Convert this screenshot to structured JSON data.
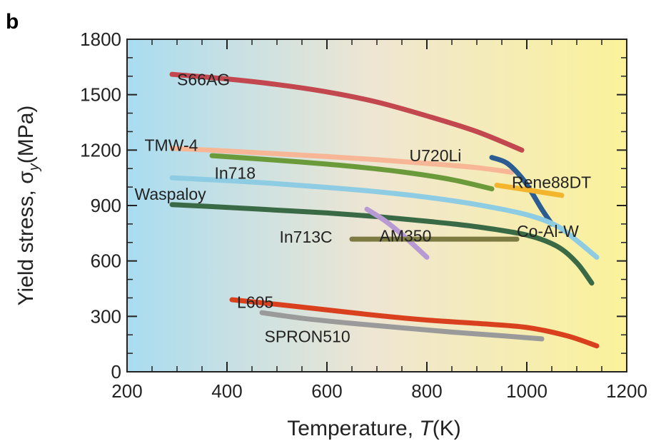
{
  "chart_data": {
    "type": "line",
    "panel_label": "b",
    "xlabel_prefix": "Temperature, ",
    "xlabel_var": "T",
    "xlabel_unit": "(K)",
    "ylabel_prefix": "Yield stress, ",
    "ylabel_sym": "σ",
    "ylabel_sub": "y",
    "ylabel_unit": "(MPa)",
    "xlim": [
      200,
      1200
    ],
    "ylim": [
      0,
      1800
    ],
    "xticks": [
      200,
      400,
      600,
      800,
      1000,
      1200
    ],
    "yticks": [
      0,
      300,
      600,
      900,
      1200,
      1500,
      1800
    ],
    "grid": false,
    "background_gradient": [
      "#a9dcf0",
      "#efe6d2",
      "#fbf29a"
    ],
    "series": [
      {
        "name": "S66AG",
        "color": "#c2474e",
        "label_at": [
          300,
          1550
        ],
        "x": [
          290,
          400,
          500,
          600,
          700,
          800,
          900,
          990
        ],
        "y": [
          1610,
          1585,
          1555,
          1515,
          1460,
          1385,
          1300,
          1200
        ]
      },
      {
        "name": "TMW-4",
        "color": "#f7b796",
        "label_at": [
          235,
          1195
        ],
        "x": [
          290,
          400,
          500,
          600,
          700,
          800,
          900,
          970
        ],
        "y": [
          1210,
          1195,
          1180,
          1165,
          1148,
          1128,
          1105,
          1080
        ]
      },
      {
        "name": "In718",
        "color": "#6a9a3a",
        "label_at": [
          375,
          1045
        ],
        "x": [
          370,
          450,
          550,
          650,
          750,
          850,
          930
        ],
        "y": [
          1170,
          1155,
          1135,
          1112,
          1082,
          1040,
          990
        ]
      },
      {
        "name": "U720Li",
        "color": "#2b5d92",
        "label_at": [
          765,
          1140
        ],
        "x": [
          930,
          960,
          990,
          1010,
          1030,
          1050
        ],
        "y": [
          1160,
          1130,
          1050,
          970,
          880,
          800
        ]
      },
      {
        "name": "Rene88DT",
        "color": "#f3b52d",
        "label_at": [
          970,
          995
        ],
        "x": [
          940,
          1000,
          1070
        ],
        "y": [
          1010,
          985,
          955
        ]
      },
      {
        "name": "Co-Al-W",
        "color": "#8dcce2",
        "label_at": [
          980,
          730
        ],
        "x": [
          290,
          400,
          500,
          600,
          700,
          800,
          900,
          1000,
          1060,
          1100,
          1140
        ],
        "y": [
          1050,
          1035,
          1018,
          998,
          975,
          945,
          905,
          850,
          790,
          710,
          620
        ]
      },
      {
        "name": "Waspaloy",
        "color": "#3a6a45",
        "label_at": [
          215,
          930
        ],
        "x": [
          290,
          400,
          500,
          600,
          700,
          800,
          900,
          1000,
          1060,
          1100,
          1130
        ],
        "y": [
          905,
          890,
          875,
          860,
          840,
          815,
          785,
          740,
          680,
          590,
          480
        ]
      },
      {
        "name": "AM350",
        "color": "#b79ad4",
        "label_at": [
          705,
          705
        ],
        "x": [
          680,
          720,
          760,
          800
        ],
        "y": [
          880,
          810,
          720,
          620
        ]
      },
      {
        "name": "In713C",
        "color": "#7d7a42",
        "label_at": [
          505,
          700
        ],
        "x": [
          650,
          750,
          850,
          980
        ],
        "y": [
          718,
          718,
          718,
          718
        ]
      },
      {
        "name": "L605",
        "color": "#d9411e",
        "label_at": [
          420,
          345
        ],
        "x": [
          410,
          500,
          600,
          700,
          800,
          900,
          1000,
          1080,
          1140
        ],
        "y": [
          390,
          365,
          335,
          305,
          280,
          262,
          240,
          195,
          140
        ]
      },
      {
        "name": "SPRON510",
        "color": "#9a9a9a",
        "label_at": [
          475,
          160
        ],
        "x": [
          470,
          550,
          650,
          750,
          850,
          950,
          1030
        ],
        "y": [
          320,
          290,
          262,
          238,
          215,
          195,
          178
        ]
      }
    ]
  }
}
